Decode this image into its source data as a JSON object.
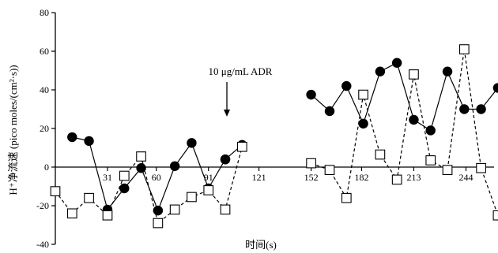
{
  "chart_data": {
    "type": "line",
    "title": "",
    "xlabel": "时间(s)",
    "ylabel": "H⁺净流速 (pico moles/(cm²·s))",
    "ylim": [
      -40,
      80
    ],
    "yticks": [
      "-40",
      "-20",
      "0",
      "20",
      "40",
      "60",
      "80"
    ],
    "xtick_values": [
      31,
      60,
      91,
      121,
      152,
      182,
      213,
      244
    ],
    "xticks": [
      "31",
      "60",
      "91",
      "121",
      "152",
      "182",
      "213",
      "244"
    ],
    "xlim": [
      0,
      256
    ],
    "grid": false,
    "annotation": {
      "text": "10 μg/mL  ADR",
      "x": 101
    },
    "series": [
      {
        "marker": "filled-circle",
        "line": "solid",
        "segments": [
          {
            "x": [
              10,
              20,
              31,
              41,
              51,
              61,
              71,
              81,
              91,
              101
            ],
            "y": [
              15.5,
              13.5,
              -22,
              -11,
              -0.5,
              -22.5,
              0.5,
              12.5,
              -11,
              4
            ]
          },
          {
            "x": [
              101,
              111
            ],
            "y": [
              4,
              11.5
            ]
          },
          {
            "x": [
              152,
              163,
              173,
              183,
              193,
              203,
              213,
              223,
              233,
              243,
              253,
              263
            ],
            "y": [
              37.5,
              29,
              42,
              22.5,
              49.5,
              54,
              24.5,
              19,
              49.5,
              30,
              30,
              41
            ]
          }
        ]
      },
      {
        "marker": "open-square",
        "line": "dashed",
        "segments": [
          {
            "x": [
              0,
              10,
              20,
              31,
              41,
              51,
              61,
              71,
              81,
              91,
              101,
              111
            ],
            "y": [
              -12.5,
              -24,
              -16,
              -25,
              -4.5,
              5.5,
              -29,
              -22,
              -15.5,
              -12,
              -22,
              10.5
            ]
          },
          {
            "x": [
              152,
              163,
              173,
              183,
              193,
              203,
              213,
              223,
              233,
              243,
              253,
              263
            ],
            "y": [
              2,
              -1.5,
              -16,
              37.5,
              6.5,
              -6.5,
              48,
              3.5,
              -1.5,
              61,
              -0.5,
              -25
            ]
          }
        ]
      }
    ]
  }
}
